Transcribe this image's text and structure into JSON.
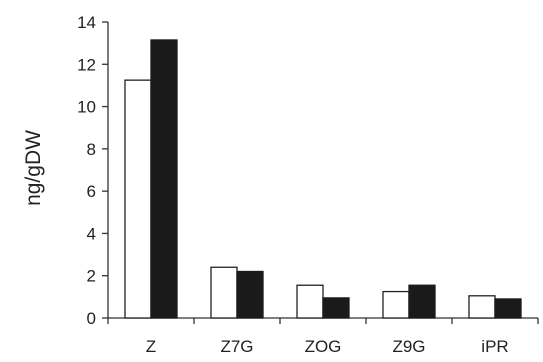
{
  "chart_data": {
    "type": "bar",
    "title": "",
    "xlabel": "",
    "ylabel": "ng/gDW",
    "categories": [
      "Z",
      "Z7G",
      "ZOG",
      "Z9G",
      "iPR"
    ],
    "series": [
      {
        "values": [
          11.25,
          2.4,
          1.55,
          1.25,
          1.05
        ],
        "fill": "#ffffff",
        "stroke": "#222222"
      },
      {
        "values": [
          13.15,
          2.2,
          0.95,
          1.55,
          0.9
        ],
        "fill": "#1a1a1a",
        "stroke": "#1a1a1a"
      }
    ],
    "ylim": [
      0,
      14
    ],
    "yticks": [
      0,
      2,
      4,
      6,
      8,
      10,
      12,
      14
    ],
    "grid": false,
    "legend": "none"
  }
}
